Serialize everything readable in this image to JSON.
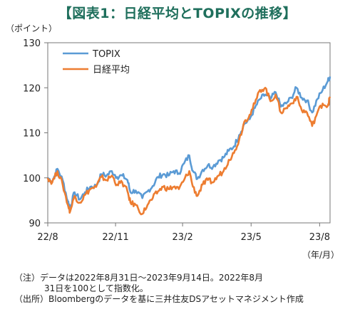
{
  "header": {
    "title": "【図表1：日経平均とTOPIXの推移】"
  },
  "axis": {
    "y_unit": "（ポイント）",
    "x_unit": "（年/月）"
  },
  "notes": {
    "line1": "（注）データは2022年8月31日～2023年9月14日。2022年8月",
    "line2": "31日を100として指数化。",
    "line3": "（出所）Bloombergのデータを基に三井住友DSアセットマネジメント作成"
  },
  "chart_data": {
    "type": "line",
    "title": "【図表1：日経平均とTOPIXの推移】",
    "ylabel": "（ポイント）",
    "xlabel": "（年/月）",
    "ylim": [
      90,
      130
    ],
    "yticks": [
      90,
      100,
      110,
      120,
      130
    ],
    "xlim": [
      "2022-08-31",
      "2023-09-14"
    ],
    "xticks": [
      {
        "date": "2022-08-31",
        "label": "22/8"
      },
      {
        "date": "2022-11-30",
        "label": "22/11"
      },
      {
        "date": "2023-02-28",
        "label": "23/2"
      },
      {
        "date": "2023-05-31",
        "label": "23/5"
      },
      {
        "date": "2023-08-31",
        "label": "23/8"
      }
    ],
    "grid": false,
    "legend": "top-left",
    "series": [
      {
        "name": "TOPIX",
        "color": "#5b9bd5",
        "points": [
          [
            "2022-08-31",
            100
          ],
          [
            "2022-09-06",
            99.2
          ],
          [
            "2022-09-13",
            102.0
          ],
          [
            "2022-09-20",
            99.5
          ],
          [
            "2022-09-27",
            94.8
          ],
          [
            "2022-09-30",
            93.5
          ],
          [
            "2022-10-06",
            96.8
          ],
          [
            "2022-10-13",
            95.2
          ],
          [
            "2022-10-20",
            96.8
          ],
          [
            "2022-10-27",
            98.0
          ],
          [
            "2022-11-04",
            98.2
          ],
          [
            "2022-11-11",
            100.8
          ],
          [
            "2022-11-18",
            100.5
          ],
          [
            "2022-11-25",
            101.5
          ],
          [
            "2022-12-02",
            100.2
          ],
          [
            "2022-12-09",
            100.5
          ],
          [
            "2022-12-16",
            99.5
          ],
          [
            "2022-12-20",
            96.8
          ],
          [
            "2022-12-27",
            97.2
          ],
          [
            "2023-01-05",
            95.5
          ],
          [
            "2023-01-12",
            97.0
          ],
          [
            "2023-01-19",
            98.2
          ],
          [
            "2023-01-26",
            100.2
          ],
          [
            "2023-02-02",
            100.8
          ],
          [
            "2023-02-09",
            100.5
          ],
          [
            "2023-02-16",
            101.5
          ],
          [
            "2023-02-23",
            101.0
          ],
          [
            "2023-03-02",
            103.2
          ],
          [
            "2023-03-09",
            105.0
          ],
          [
            "2023-03-14",
            101.5
          ],
          [
            "2023-03-20",
            99.8
          ],
          [
            "2023-03-27",
            101.8
          ],
          [
            "2023-04-03",
            102.8
          ],
          [
            "2023-04-10",
            102.5
          ],
          [
            "2023-04-17",
            103.8
          ],
          [
            "2023-04-24",
            104.5
          ],
          [
            "2023-05-01",
            106.0
          ],
          [
            "2023-05-08",
            107.0
          ],
          [
            "2023-05-15",
            109.5
          ],
          [
            "2023-05-22",
            112.0
          ],
          [
            "2023-05-29",
            113.0
          ],
          [
            "2023-06-05",
            115.5
          ],
          [
            "2023-06-12",
            117.5
          ],
          [
            "2023-06-19",
            118.5
          ],
          [
            "2023-06-26",
            117.5
          ],
          [
            "2023-07-03",
            119.0
          ],
          [
            "2023-07-10",
            115.8
          ],
          [
            "2023-07-17",
            116.5
          ],
          [
            "2023-07-24",
            117.8
          ],
          [
            "2023-07-31",
            120.0
          ],
          [
            "2023-08-07",
            117.8
          ],
          [
            "2023-08-14",
            117.2
          ],
          [
            "2023-08-21",
            114.5
          ],
          [
            "2023-08-28",
            117.5
          ],
          [
            "2023-09-04",
            119.5
          ],
          [
            "2023-09-11",
            121.5
          ],
          [
            "2023-09-14",
            122.5
          ]
        ]
      },
      {
        "name": "日経平均",
        "color": "#ed7d31",
        "points": [
          [
            "2022-08-31",
            100
          ],
          [
            "2022-09-06",
            99.0
          ],
          [
            "2022-09-13",
            101.5
          ],
          [
            "2022-09-20",
            98.5
          ],
          [
            "2022-09-27",
            94.0
          ],
          [
            "2022-09-30",
            92.5
          ],
          [
            "2022-10-06",
            96.0
          ],
          [
            "2022-10-13",
            94.5
          ],
          [
            "2022-10-20",
            96.2
          ],
          [
            "2022-10-27",
            97.5
          ],
          [
            "2022-11-04",
            98.0
          ],
          [
            "2022-11-11",
            100.2
          ],
          [
            "2022-11-18",
            99.5
          ],
          [
            "2022-11-25",
            100.5
          ],
          [
            "2022-12-02",
            98.5
          ],
          [
            "2022-12-09",
            99.0
          ],
          [
            "2022-12-16",
            97.0
          ],
          [
            "2022-12-20",
            94.5
          ],
          [
            "2022-12-27",
            94.0
          ],
          [
            "2023-01-05",
            92.0
          ],
          [
            "2023-01-12",
            94.0
          ],
          [
            "2023-01-19",
            95.5
          ],
          [
            "2023-01-26",
            97.0
          ],
          [
            "2023-02-02",
            98.0
          ],
          [
            "2023-02-09",
            97.5
          ],
          [
            "2023-02-16",
            98.0
          ],
          [
            "2023-02-23",
            97.5
          ],
          [
            "2023-03-02",
            99.5
          ],
          [
            "2023-03-09",
            101.5
          ],
          [
            "2023-03-14",
            98.0
          ],
          [
            "2023-03-20",
            96.0
          ],
          [
            "2023-03-27",
            98.5
          ],
          [
            "2023-04-03",
            99.5
          ],
          [
            "2023-04-10",
            99.0
          ],
          [
            "2023-04-17",
            100.5
          ],
          [
            "2023-04-24",
            101.5
          ],
          [
            "2023-05-01",
            104.0
          ],
          [
            "2023-05-08",
            105.5
          ],
          [
            "2023-05-15",
            108.5
          ],
          [
            "2023-05-22",
            112.5
          ],
          [
            "2023-05-29",
            114.0
          ],
          [
            "2023-06-05",
            116.5
          ],
          [
            "2023-06-12",
            119.5
          ],
          [
            "2023-06-19",
            120.0
          ],
          [
            "2023-06-26",
            117.0
          ],
          [
            "2023-07-03",
            118.5
          ],
          [
            "2023-07-10",
            114.5
          ],
          [
            "2023-07-17",
            115.5
          ],
          [
            "2023-07-24",
            116.5
          ],
          [
            "2023-07-31",
            118.0
          ],
          [
            "2023-08-07",
            115.0
          ],
          [
            "2023-08-14",
            114.5
          ],
          [
            "2023-08-21",
            111.5
          ],
          [
            "2023-08-28",
            114.5
          ],
          [
            "2023-09-04",
            116.5
          ],
          [
            "2023-09-11",
            116.0
          ],
          [
            "2023-09-14",
            118.0
          ]
        ]
      }
    ]
  }
}
